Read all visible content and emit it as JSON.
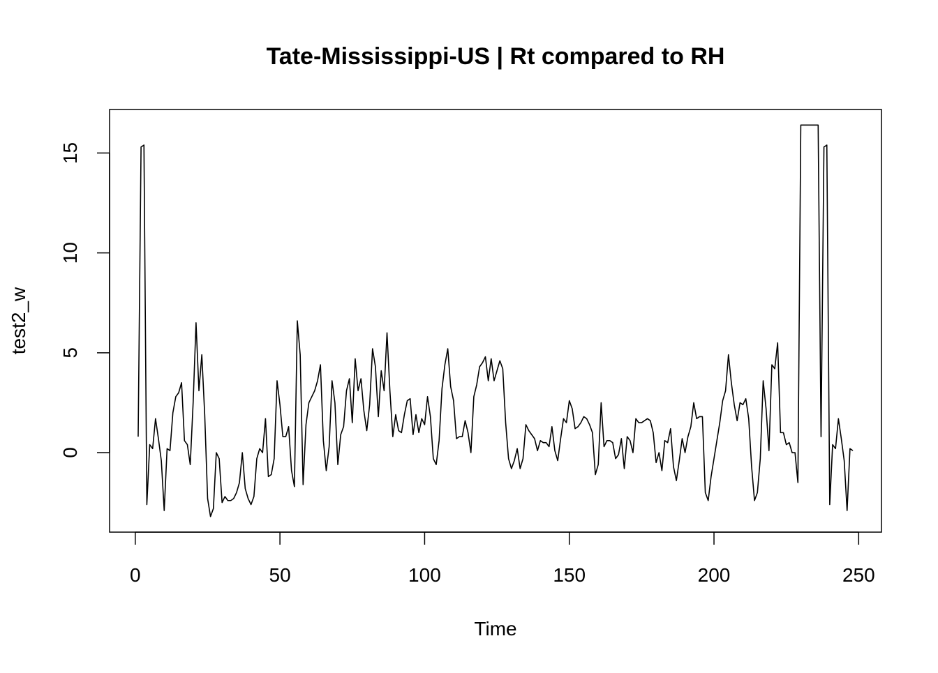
{
  "chart_data": {
    "type": "line",
    "title": "Tate-Mississippi-US | Rt compared to RH",
    "x_label": "Time",
    "y_label": "test2_w",
    "x": [
      1,
      2,
      3,
      4,
      5,
      6,
      7,
      8,
      9,
      10,
      11,
      12,
      13,
      14,
      15,
      16,
      17,
      18,
      19,
      20,
      21,
      22,
      23,
      24,
      25,
      26,
      27,
      28,
      29,
      30,
      31,
      32,
      33,
      34,
      35,
      36,
      37,
      38,
      39,
      40,
      41,
      42,
      43,
      44,
      45,
      46,
      47,
      48,
      49,
      50,
      51,
      52,
      53,
      54,
      55,
      56,
      57,
      58,
      59,
      60,
      61,
      62,
      63,
      64,
      65,
      66,
      67,
      68,
      69,
      70,
      71,
      72,
      73,
      74,
      75,
      76,
      77,
      78,
      79,
      80,
      81,
      82,
      83,
      84,
      85,
      86,
      87,
      88,
      89,
      90,
      91,
      92,
      93,
      94,
      95,
      96,
      97,
      98,
      99,
      100,
      101,
      102,
      103,
      104,
      105,
      106,
      107,
      108,
      109,
      110,
      111,
      112,
      113,
      114,
      115,
      116,
      117,
      118,
      119,
      120,
      121,
      122,
      123,
      124,
      125,
      126,
      127,
      128,
      129,
      130,
      131,
      132,
      133,
      134,
      135,
      136,
      137,
      138,
      139,
      140,
      141,
      142,
      143,
      144,
      145,
      146,
      147,
      148,
      149,
      150,
      151,
      152,
      153,
      154,
      155,
      156,
      157,
      158,
      159,
      160,
      161,
      162,
      163,
      164,
      165,
      166,
      167,
      168,
      169,
      170,
      171,
      172,
      173,
      174,
      175,
      176,
      177,
      178,
      179,
      180,
      181,
      182,
      183,
      184,
      185,
      186,
      187,
      188,
      189,
      190,
      191,
      192,
      193,
      194,
      195,
      196,
      197,
      198,
      199,
      200,
      201,
      202,
      203,
      204,
      205,
      206,
      207,
      208,
      209,
      210,
      211,
      212,
      213,
      214,
      215,
      216,
      217,
      218,
      219,
      220,
      221,
      222,
      223,
      224,
      225,
      226,
      227,
      228,
      229,
      230,
      231,
      232,
      233,
      234,
      235,
      236,
      237,
      238,
      239,
      240,
      241,
      242,
      243,
      244,
      245,
      246,
      247,
      248
    ],
    "series": [
      {
        "name": "test2_w",
        "color": "#000000",
        "values": [
          0.8,
          15.3,
          15.4,
          -2.6,
          0.4,
          0.2,
          1.7,
          0.7,
          -0.4,
          -2.9,
          0.2,
          0.1,
          2.0,
          2.8,
          3.0,
          3.5,
          0.6,
          0.4,
          -0.6,
          2.5,
          6.5,
          3.1,
          4.9,
          1.9,
          -2.3,
          -3.2,
          -2.8,
          0.0,
          -0.3,
          -2.5,
          -2.2,
          -2.4,
          -2.4,
          -2.3,
          -2.0,
          -1.5,
          0.0,
          -1.8,
          -2.3,
          -2.6,
          -2.2,
          -0.3,
          0.2,
          0.0,
          1.7,
          -1.2,
          -1.1,
          -0.3,
          3.6,
          2.4,
          0.8,
          0.8,
          1.3,
          -0.9,
          -1.7,
          6.6,
          4.9,
          -1.6,
          1.4,
          2.5,
          2.8,
          3.1,
          3.6,
          4.4,
          0.6,
          -0.9,
          0.3,
          3.6,
          2.5,
          -0.6,
          0.9,
          1.3,
          3.1,
          3.7,
          1.5,
          4.7,
          3.1,
          3.7,
          2.1,
          1.1,
          2.4,
          5.2,
          4.3,
          1.8,
          4.1,
          3.1,
          6.0,
          3.1,
          0.8,
          1.9,
          1.1,
          1.0,
          1.9,
          2.6,
          2.7,
          0.9,
          1.9,
          1.0,
          1.7,
          1.4,
          2.8,
          1.8,
          -0.3,
          -0.6,
          0.6,
          3.2,
          4.4,
          5.2,
          3.3,
          2.6,
          0.7,
          0.8,
          0.8,
          1.6,
          1.0,
          0.0,
          2.8,
          3.4,
          4.3,
          4.5,
          4.8,
          3.6,
          4.7,
          3.6,
          4.1,
          4.6,
          4.2,
          1.5,
          -0.3,
          -0.8,
          -0.4,
          0.2,
          -0.8,
          -0.3,
          1.4,
          1.1,
          0.9,
          0.7,
          0.1,
          0.6,
          0.5,
          0.5,
          0.3,
          1.3,
          0.1,
          -0.4,
          0.7,
          1.7,
          1.5,
          2.6,
          2.2,
          1.2,
          1.3,
          1.5,
          1.8,
          1.7,
          1.4,
          1.0,
          -1.1,
          -0.6,
          2.5,
          0.3,
          0.6,
          0.6,
          0.5,
          -0.3,
          -0.1,
          0.7,
          -0.8,
          0.8,
          0.6,
          0.0,
          1.7,
          1.5,
          1.5,
          1.6,
          1.7,
          1.6,
          1.0,
          -0.5,
          0.0,
          -0.9,
          0.6,
          0.5,
          1.2,
          -0.7,
          -1.4,
          -0.4,
          0.7,
          0.0,
          0.8,
          1.3,
          2.5,
          1.7,
          1.8,
          1.8,
          -2.0,
          -2.4,
          -1.2,
          -0.3,
          0.6,
          1.5,
          2.6,
          3.1,
          4.9,
          3.5,
          2.4,
          1.6,
          2.5,
          2.4,
          2.7,
          1.7,
          -0.7,
          -2.4,
          -2.0,
          -0.3,
          3.6,
          2.2,
          0.1,
          4.4,
          4.2,
          5.5,
          1.0,
          1.0,
          0.4,
          0.5,
          0.0,
          0.0,
          -1.5,
          16.4,
          16.4,
          16.4,
          16.4,
          16.4,
          16.4,
          16.4,
          0.8,
          15.3,
          15.4,
          -2.6,
          0.4,
          0.2,
          1.7,
          0.7,
          -0.4,
          -2.9,
          0.2,
          0.1
        ]
      }
    ],
    "xlim": [
      -8.88,
      257.88
    ],
    "ylim": [
      -3.98,
      17.18
    ],
    "xticks": [
      0,
      50,
      100,
      150,
      200,
      250
    ],
    "yticks": [
      0,
      5,
      10,
      15
    ]
  }
}
